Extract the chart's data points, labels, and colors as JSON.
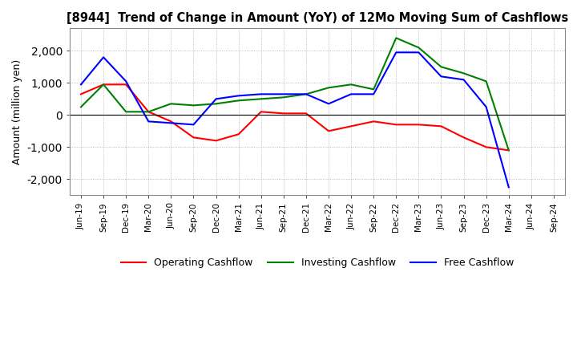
{
  "title": "[8944]  Trend of Change in Amount (YoY) of 12Mo Moving Sum of Cashflows",
  "ylabel": "Amount (million yen)",
  "ylim": [
    -2500,
    2700
  ],
  "yticks": [
    -2000,
    -1000,
    0,
    1000,
    2000
  ],
  "x_labels": [
    "Jun-19",
    "Sep-19",
    "Dec-19",
    "Mar-20",
    "Jun-20",
    "Sep-20",
    "Dec-20",
    "Mar-21",
    "Jun-21",
    "Sep-21",
    "Dec-21",
    "Mar-22",
    "Jun-22",
    "Sep-22",
    "Dec-22",
    "Mar-23",
    "Jun-23",
    "Sep-23",
    "Dec-23",
    "Mar-24",
    "Jun-24",
    "Sep-24"
  ],
  "operating": [
    650,
    950,
    950,
    100,
    -200,
    -700,
    -800,
    -600,
    100,
    50,
    50,
    -500,
    -350,
    -200,
    -300,
    -300,
    -350,
    -700,
    -1000,
    -1100,
    null,
    null
  ],
  "investing": [
    250,
    950,
    100,
    100,
    350,
    300,
    350,
    450,
    500,
    550,
    650,
    850,
    950,
    800,
    2400,
    2100,
    1500,
    1300,
    1050,
    -1100,
    null,
    null
  ],
  "free": [
    950,
    1800,
    1050,
    -200,
    -250,
    -300,
    500,
    600,
    650,
    650,
    650,
    350,
    650,
    650,
    1950,
    1950,
    1200,
    1100,
    250,
    -2250,
    null,
    null
  ],
  "operating_color": "#ff0000",
  "investing_color": "#008000",
  "free_color": "#0000ff",
  "bg_color": "#ffffff",
  "grid_color": "#aaaaaa"
}
